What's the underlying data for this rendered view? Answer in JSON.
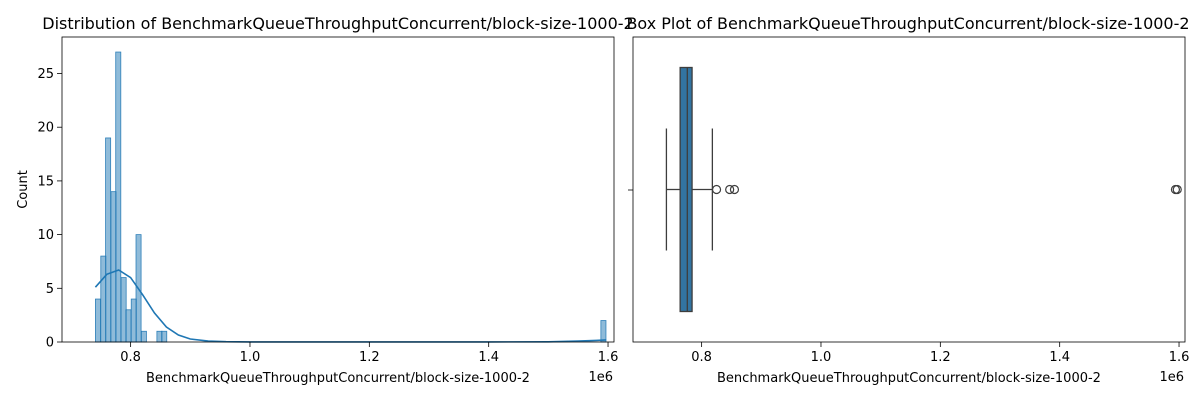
{
  "colors": {
    "hist_fill": "#1f77b4",
    "kde_line": "#1f77b4",
    "box_fill": "#3274a1",
    "whisker": "#3d3d3d"
  },
  "chart_data": [
    {
      "type": "histogram",
      "title": "Distribution of BenchmarkQueueThroughputConcurrent/block-size-1000-2",
      "xlabel": "BenchmarkQueueThroughputConcurrent/block-size-1000-2",
      "ylabel": "Count",
      "x_offset_label": "1e6",
      "xlim": [
        0.685,
        1.61
      ],
      "ylim": [
        0,
        28.4
      ],
      "xticks": [
        0.8,
        1.0,
        1.2,
        1.4,
        1.6
      ],
      "xtick_labels": [
        "0.8",
        "1.0",
        "1.2",
        "1.4",
        "1.6"
      ],
      "yticks": [
        0,
        5,
        10,
        15,
        20,
        25
      ],
      "ytick_labels": [
        "0",
        "5",
        "10",
        "15",
        "20",
        "25"
      ],
      "bin_width": 0.00855,
      "bins": [
        {
          "start": 0.741,
          "count": 4
        },
        {
          "start": 0.75,
          "count": 8
        },
        {
          "start": 0.758,
          "count": 19
        },
        {
          "start": 0.767,
          "count": 14
        },
        {
          "start": 0.775,
          "count": 27
        },
        {
          "start": 0.784,
          "count": 6
        },
        {
          "start": 0.792,
          "count": 3
        },
        {
          "start": 0.801,
          "count": 4
        },
        {
          "start": 0.809,
          "count": 10
        },
        {
          "start": 0.818,
          "count": 1
        },
        {
          "start": 0.844,
          "count": 1
        },
        {
          "start": 0.852,
          "count": 1
        },
        {
          "start": 1.588,
          "count": 2
        }
      ],
      "kde": {
        "x": [
          0.741,
          0.76,
          0.78,
          0.8,
          0.82,
          0.84,
          0.86,
          0.88,
          0.9,
          0.93,
          0.96,
          1.0,
          1.1,
          1.2,
          1.3,
          1.4,
          1.5,
          1.55,
          1.58,
          1.597
        ],
        "y": [
          5.1,
          6.3,
          6.7,
          6.0,
          4.4,
          2.7,
          1.4,
          0.65,
          0.28,
          0.08,
          0.03,
          0.01,
          0.005,
          0.005,
          0.005,
          0.005,
          0.02,
          0.08,
          0.15,
          0.2
        ]
      }
    },
    {
      "type": "box",
      "title": "Box Plot of BenchmarkQueueThroughputConcurrent/block-size-1000-2",
      "xlabel": "BenchmarkQueueThroughputConcurrent/block-size-1000-2",
      "x_offset_label": "1e6",
      "xlim": [
        0.685,
        1.61
      ],
      "xticks": [
        0.8,
        1.0,
        1.2,
        1.4,
        1.6
      ],
      "xtick_labels": [
        "0.8",
        "1.0",
        "1.2",
        "1.4",
        "1.6"
      ],
      "q1": 0.764,
      "median": 0.776,
      "q3": 0.784,
      "whisker_low": 0.741,
      "whisker_high": 0.818,
      "outliers": [
        0.825,
        0.847,
        0.855,
        1.594,
        1.597
      ]
    }
  ]
}
